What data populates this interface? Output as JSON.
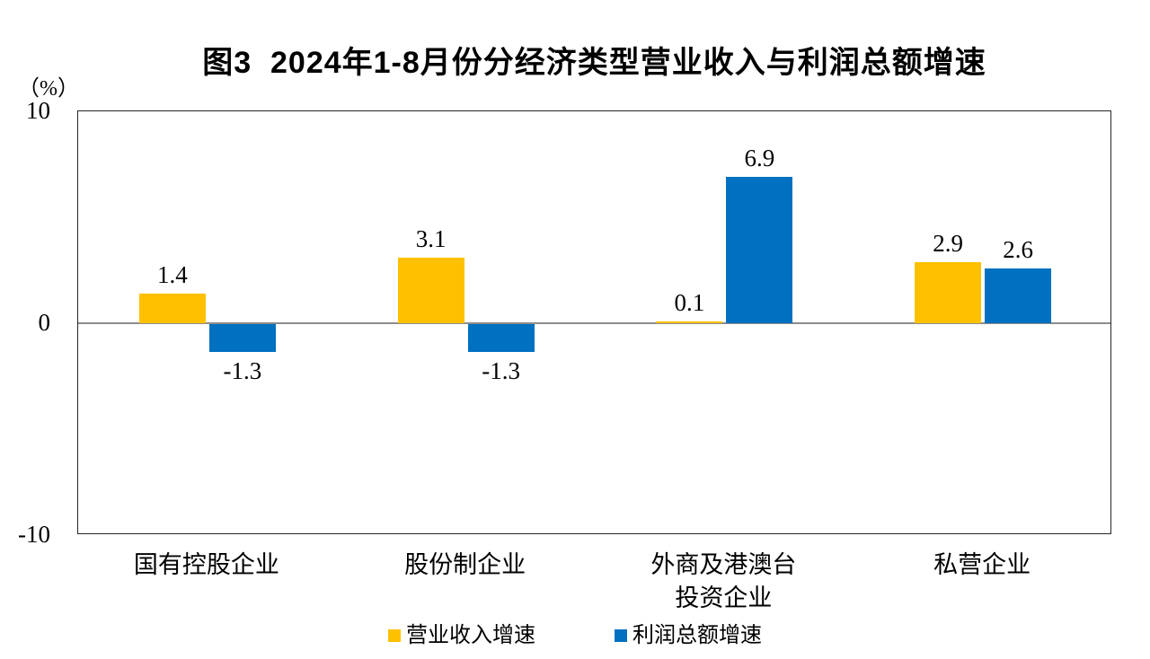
{
  "chart_data": {
    "type": "bar",
    "title": "图3  2024年1-8月份分经济类型营业收入与利润总额增速",
    "unit": "（%）",
    "categories": [
      "国有控股企业",
      "股份制企业",
      "外商及港澳台\n投资企业",
      "私营企业"
    ],
    "series": [
      {
        "key": "revenue-growth",
        "name": "营业收入增速",
        "color": "#FFC000",
        "values": [
          1.4,
          3.1,
          0.1,
          2.9
        ]
      },
      {
        "key": "profit-growth",
        "name": "利润总额增速",
        "color": "#0070C0",
        "values": [
          -1.3,
          -1.3,
          6.9,
          2.6
        ]
      }
    ],
    "ylim": [
      -10,
      10
    ],
    "yticks": [
      10,
      0,
      -10
    ],
    "value_label_decimals": 1,
    "grid": false,
    "legend_position": "bottom",
    "zero_line_color": "#8C8C8C",
    "border_color": "#262626"
  }
}
